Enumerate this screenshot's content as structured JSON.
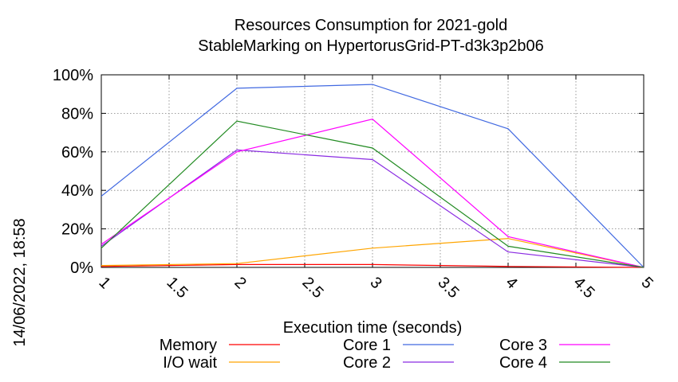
{
  "chart_data": {
    "type": "line",
    "title": "Resources Consumption for 2021-gold",
    "subtitle": "StableMarking on HypertorusGrid-PT-d3k3p2b06",
    "xlabel": "Execution time (seconds)",
    "ylabel": "",
    "side_label": "14/06/2022, 18:58",
    "xlim": [
      1,
      5
    ],
    "ylim": [
      0,
      100
    ],
    "x_ticks": [
      "1",
      "1.5",
      "2",
      "2.5",
      "3",
      "3.5",
      "4",
      "4.5",
      "5"
    ],
    "y_ticks": [
      "0%",
      "20%",
      "40%",
      "60%",
      "80%",
      "100%"
    ],
    "grid": true,
    "legend_position": "bottom",
    "series": [
      {
        "name": "Memory",
        "color": "#ff0000",
        "x": [
          1,
          2,
          3,
          4,
          5
        ],
        "y": [
          0.5,
          1.5,
          1.5,
          0.5,
          0
        ]
      },
      {
        "name": "I/O wait",
        "color": "#ffa500",
        "x": [
          1,
          2,
          3,
          4,
          5
        ],
        "y": [
          1,
          2,
          10,
          15,
          0
        ]
      },
      {
        "name": "Core 1",
        "color": "#4169e1",
        "x": [
          1,
          2,
          3,
          4,
          5
        ],
        "y": [
          37,
          93,
          95,
          72,
          0
        ]
      },
      {
        "name": "Core 2",
        "color": "#8a2be2",
        "x": [
          1,
          2,
          3,
          4,
          5
        ],
        "y": [
          11,
          61,
          56,
          8,
          0
        ]
      },
      {
        "name": "Core 3",
        "color": "#ff00ff",
        "x": [
          1,
          2,
          3,
          4,
          5
        ],
        "y": [
          12,
          60,
          77,
          16,
          0
        ]
      },
      {
        "name": "Core 4",
        "color": "#228b22",
        "x": [
          1,
          2,
          3,
          4,
          5
        ],
        "y": [
          10,
          76,
          62,
          11,
          0
        ]
      }
    ]
  }
}
